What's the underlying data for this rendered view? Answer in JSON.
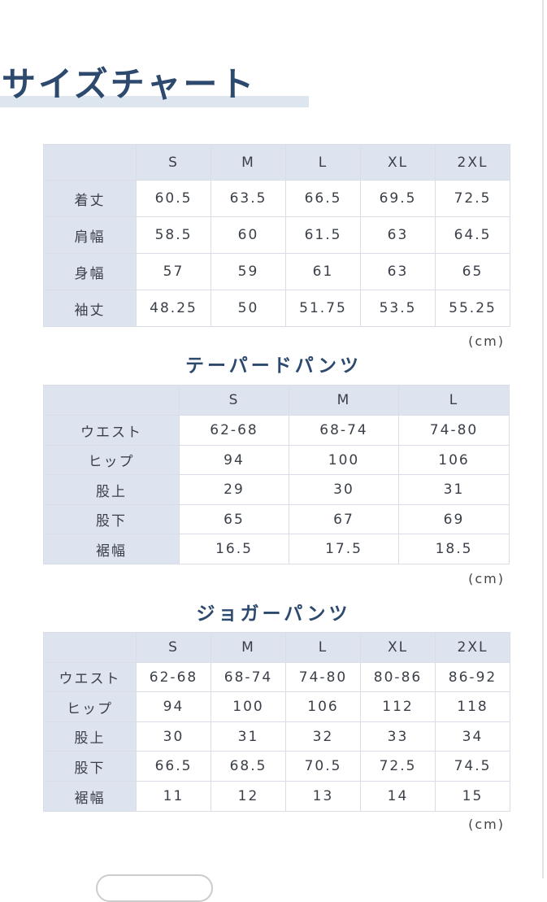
{
  "title": "サイズチャート",
  "tables": [
    {
      "columns": [
        "S",
        "M",
        "L",
        "XL",
        "2XL"
      ],
      "rows": [
        {
          "label": "着丈",
          "cells": [
            "60.5",
            "63.5",
            "66.5",
            "69.5",
            "72.5"
          ]
        },
        {
          "label": "肩幅",
          "cells": [
            "58.5",
            "60",
            "61.5",
            "63",
            "64.5"
          ]
        },
        {
          "label": "身幅",
          "cells": [
            "57",
            "59",
            "61",
            "63",
            "65"
          ]
        },
        {
          "label": "袖丈",
          "cells": [
            "48.25",
            "50",
            "51.75",
            "53.5",
            "55.25"
          ]
        }
      ],
      "unit": "(cm)"
    },
    {
      "title": "テーパードパンツ",
      "columns": [
        "S",
        "M",
        "L"
      ],
      "rows": [
        {
          "label": "ウエスト",
          "cells": [
            "62-68",
            "68-74",
            "74-80"
          ]
        },
        {
          "label": "ヒップ",
          "cells": [
            "94",
            "100",
            "106"
          ]
        },
        {
          "label": "股上",
          "cells": [
            "29",
            "30",
            "31"
          ]
        },
        {
          "label": "股下",
          "cells": [
            "65",
            "67",
            "69"
          ]
        },
        {
          "label": "裾幅",
          "cells": [
            "16.5",
            "17.5",
            "18.5"
          ]
        }
      ],
      "unit": "(cm)"
    },
    {
      "title": "ジョガーパンツ",
      "columns": [
        "S",
        "M",
        "L",
        "XL",
        "2XL"
      ],
      "rows": [
        {
          "label": "ウエスト",
          "cells": [
            "62-68",
            "68-74",
            "74-80",
            "80-86",
            "86-92"
          ]
        },
        {
          "label": "ヒップ",
          "cells": [
            "94",
            "100",
            "106",
            "112",
            "118"
          ]
        },
        {
          "label": "股上",
          "cells": [
            "30",
            "31",
            "32",
            "33",
            "34"
          ]
        },
        {
          "label": "股下",
          "cells": [
            "66.5",
            "68.5",
            "70.5",
            "72.5",
            "74.5"
          ]
        },
        {
          "label": "裾幅",
          "cells": [
            "11",
            "12",
            "13",
            "14",
            "15"
          ]
        }
      ],
      "unit": "(cm)"
    }
  ]
}
